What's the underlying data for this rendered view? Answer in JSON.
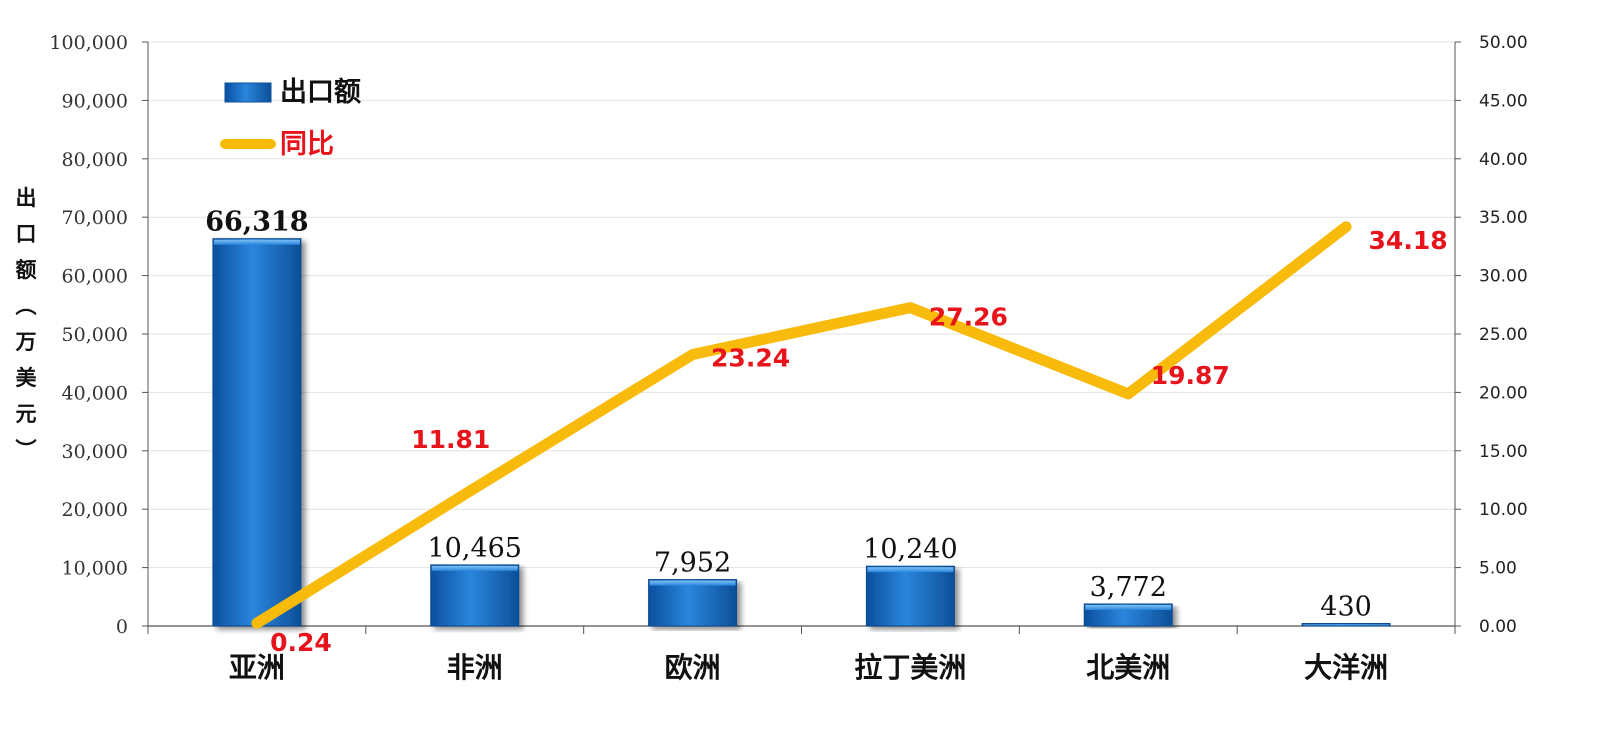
{
  "chart_data": {
    "type": "bar",
    "categories": [
      "亚洲",
      "非洲",
      "欧洲",
      "拉丁美洲",
      "北美洲",
      "大洋洲"
    ],
    "series": [
      {
        "name": "出口额",
        "type": "bar",
        "axis": "left",
        "values": [
          66318,
          10465,
          7952,
          10240,
          3772,
          430
        ],
        "labels": [
          "66,318",
          "10,465",
          "7,952",
          "10,240",
          "3,772",
          "430"
        ]
      },
      {
        "name": "同比",
        "type": "line",
        "axis": "right",
        "values": [
          0.24,
          11.81,
          23.24,
          27.26,
          19.87,
          34.18
        ],
        "labels": [
          "0.24",
          "11.81",
          "23.24",
          "27.26",
          "19.87",
          "34.18"
        ]
      }
    ],
    "ylabel": "出口额（万美元）",
    "ylim": [
      0,
      100000
    ],
    "y2lim": [
      0,
      50
    ],
    "yticks": [
      "0",
      "10,000",
      "20,000",
      "30,000",
      "40,000",
      "50,000",
      "60,000",
      "70,000",
      "80,000",
      "90,000",
      "100,000"
    ],
    "y2ticks": [
      "0.00",
      "5.00",
      "10.00",
      "15.00",
      "20.00",
      "25.00",
      "30.00",
      "35.00",
      "40.00",
      "45.00",
      "50.00"
    ],
    "grid": true,
    "legend_position": "top-left",
    "colors": {
      "bar": "#1c6fc4",
      "line": "#f9bb0b",
      "line_label": "#e8141b"
    }
  }
}
